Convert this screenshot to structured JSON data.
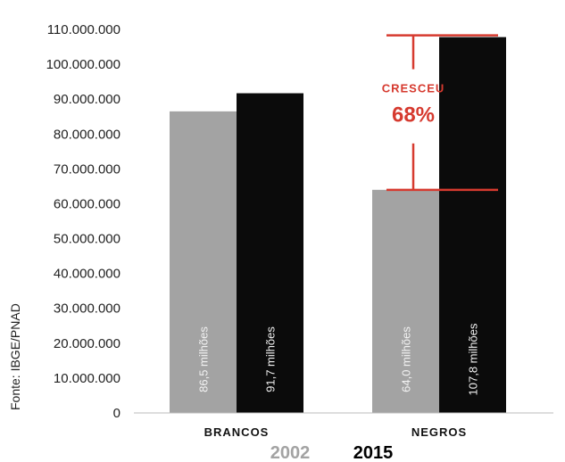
{
  "chart_data": {
    "type": "bar",
    "categories": [
      "BRANCOS",
      "NEGROS"
    ],
    "series": [
      {
        "name": "2002",
        "values": [
          86500000,
          64000000
        ],
        "color": "#a3a3a3"
      },
      {
        "name": "2015",
        "values": [
          91700000,
          107800000
        ],
        "color": "#0b0b0b"
      }
    ],
    "bar_labels": [
      [
        "86,5 milhões",
        "64,0 milhões"
      ],
      [
        "91,7 milhões",
        "107,8 milhões"
      ]
    ],
    "y_ticks": [
      {
        "value": 110000000,
        "label": "110.000.000"
      },
      {
        "value": 100000000,
        "label": "100.000.000"
      },
      {
        "value": 90000000,
        "label": "90.000.000"
      },
      {
        "value": 80000000,
        "label": "80.000.000"
      },
      {
        "value": 70000000,
        "label": "70.000.000"
      },
      {
        "value": 60000000,
        "label": "60.000.000"
      },
      {
        "value": 50000000,
        "label": "50.000.000"
      },
      {
        "value": 40000000,
        "label": "40.000.000"
      },
      {
        "value": 30000000,
        "label": "30.000.000"
      },
      {
        "value": 20000000,
        "label": "20.000.000"
      },
      {
        "value": 10000000,
        "label": "10.000.000"
      },
      {
        "value": 0,
        "label": "0"
      }
    ],
    "ylim": [
      0,
      110000000
    ],
    "grid": false,
    "legend_position": "bottom-center",
    "annotation": {
      "line1": "CRESCEU",
      "line2": "68%",
      "category": "NEGROS",
      "from": 64000000,
      "to": 107800000,
      "color": "#d63a2f"
    },
    "source": "Fonte: IBGE/PNAD"
  }
}
